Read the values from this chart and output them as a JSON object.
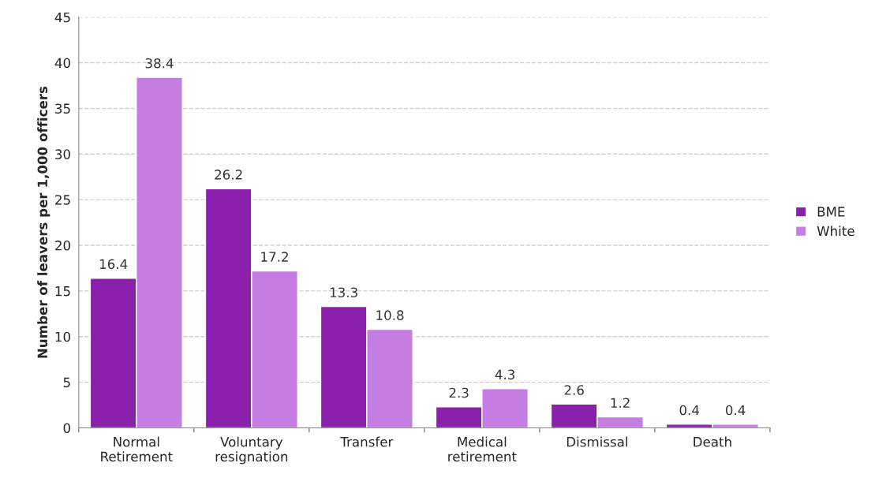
{
  "chart_data": {
    "type": "bar",
    "ylabel": "Number of leavers per 1,000 officers",
    "categories": [
      "Normal\nRetirement",
      "Voluntary\nresignation",
      "Transfer",
      "Medical\nretirement",
      "Dismissal",
      "Death"
    ],
    "series": [
      {
        "name": "BME",
        "color": "#8b20ac",
        "values": [
          16.4,
          26.2,
          13.3,
          2.3,
          2.6,
          0.4
        ]
      },
      {
        "name": "White",
        "color": "#c67de3",
        "values": [
          38.4,
          17.2,
          10.8,
          4.3,
          1.2,
          0.4
        ]
      }
    ],
    "ylim": [
      0,
      45
    ],
    "yticks": [
      0,
      5,
      10,
      15,
      20,
      25,
      30,
      35,
      40,
      45
    ],
    "grid": "y",
    "legend": "right",
    "data_labels": true
  }
}
